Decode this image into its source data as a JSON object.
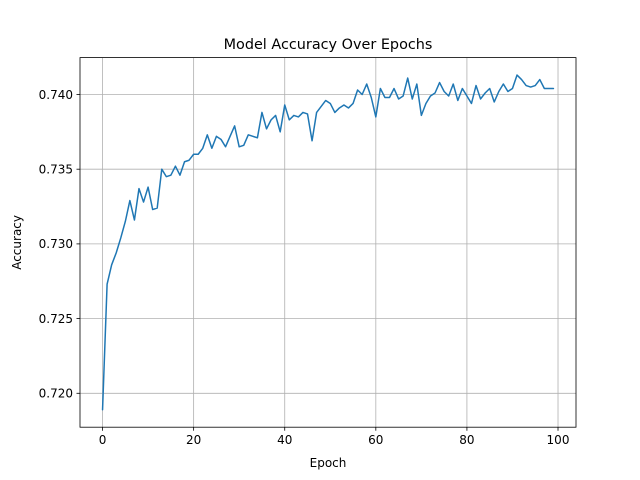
{
  "chart_data": {
    "type": "line",
    "title": "Model Accuracy Over Epochs",
    "xlabel": "Epoch",
    "ylabel": "Accuracy",
    "xlim": [
      -4.95,
      103.95
    ],
    "ylim": [
      0.71773,
      0.74247
    ],
    "grid": true,
    "xticks": [
      0,
      20,
      40,
      60,
      80,
      100
    ],
    "xtick_labels": [
      "0",
      "20",
      "40",
      "60",
      "80",
      "100"
    ],
    "yticks": [
      0.72,
      0.725,
      0.73,
      0.735,
      0.74
    ],
    "ytick_labels": [
      "0.720",
      "0.725",
      "0.730",
      "0.735",
      "0.740"
    ],
    "line_color": "#1f77b4",
    "series": [
      {
        "x": [
          0,
          1,
          2,
          3,
          4,
          5,
          6,
          7,
          8,
          9,
          10,
          11,
          12,
          13,
          14,
          15,
          16,
          17,
          18,
          19,
          20,
          21,
          22,
          23,
          24,
          25,
          26,
          27,
          28,
          29,
          30,
          31,
          32,
          33,
          34,
          35,
          36,
          37,
          38,
          39,
          40,
          41,
          42,
          43,
          44,
          45,
          46,
          47,
          48,
          49,
          50,
          51,
          52,
          53,
          54,
          55,
          56,
          57,
          58,
          59,
          60,
          61,
          62,
          63,
          64,
          65,
          66,
          67,
          68,
          69,
          70,
          71,
          72,
          73,
          74,
          75,
          76,
          77,
          78,
          79,
          80,
          81,
          82,
          83,
          84,
          85,
          86,
          87,
          88,
          89,
          90,
          91,
          92,
          93,
          94,
          95,
          96,
          97,
          98,
          99
        ],
        "values": [
          0.7189,
          0.7273,
          0.7286,
          0.7294,
          0.7304,
          0.7315,
          0.7329,
          0.7316,
          0.7337,
          0.7328,
          0.7338,
          0.7323,
          0.7324,
          0.735,
          0.7345,
          0.7346,
          0.7352,
          0.7346,
          0.7355,
          0.7356,
          0.736,
          0.736,
          0.7364,
          0.7373,
          0.7364,
          0.7372,
          0.737,
          0.7365,
          0.7372,
          0.7379,
          0.7365,
          0.7366,
          0.7373,
          0.7372,
          0.7371,
          0.7388,
          0.7377,
          0.7383,
          0.7386,
          0.7375,
          0.7393,
          0.7383,
          0.7386,
          0.7385,
          0.7388,
          0.7387,
          0.7369,
          0.7388,
          0.7392,
          0.7396,
          0.7394,
          0.7388,
          0.7391,
          0.7393,
          0.7391,
          0.7394,
          0.7403,
          0.74,
          0.7407,
          0.7398,
          0.7385,
          0.7404,
          0.7398,
          0.7398,
          0.7404,
          0.7397,
          0.7399,
          0.7411,
          0.7397,
          0.7407,
          0.7386,
          0.7394,
          0.7399,
          0.7401,
          0.7408,
          0.7402,
          0.7399,
          0.7407,
          0.7396,
          0.7404,
          0.7399,
          0.7394,
          0.7406,
          0.7397,
          0.7401,
          0.7404,
          0.7395,
          0.7402,
          0.7407,
          0.7402,
          0.7404,
          0.7413,
          0.741,
          0.7406,
          0.7405,
          0.7406,
          0.741,
          0.7404,
          0.7404,
          0.7404
        ]
      }
    ]
  }
}
